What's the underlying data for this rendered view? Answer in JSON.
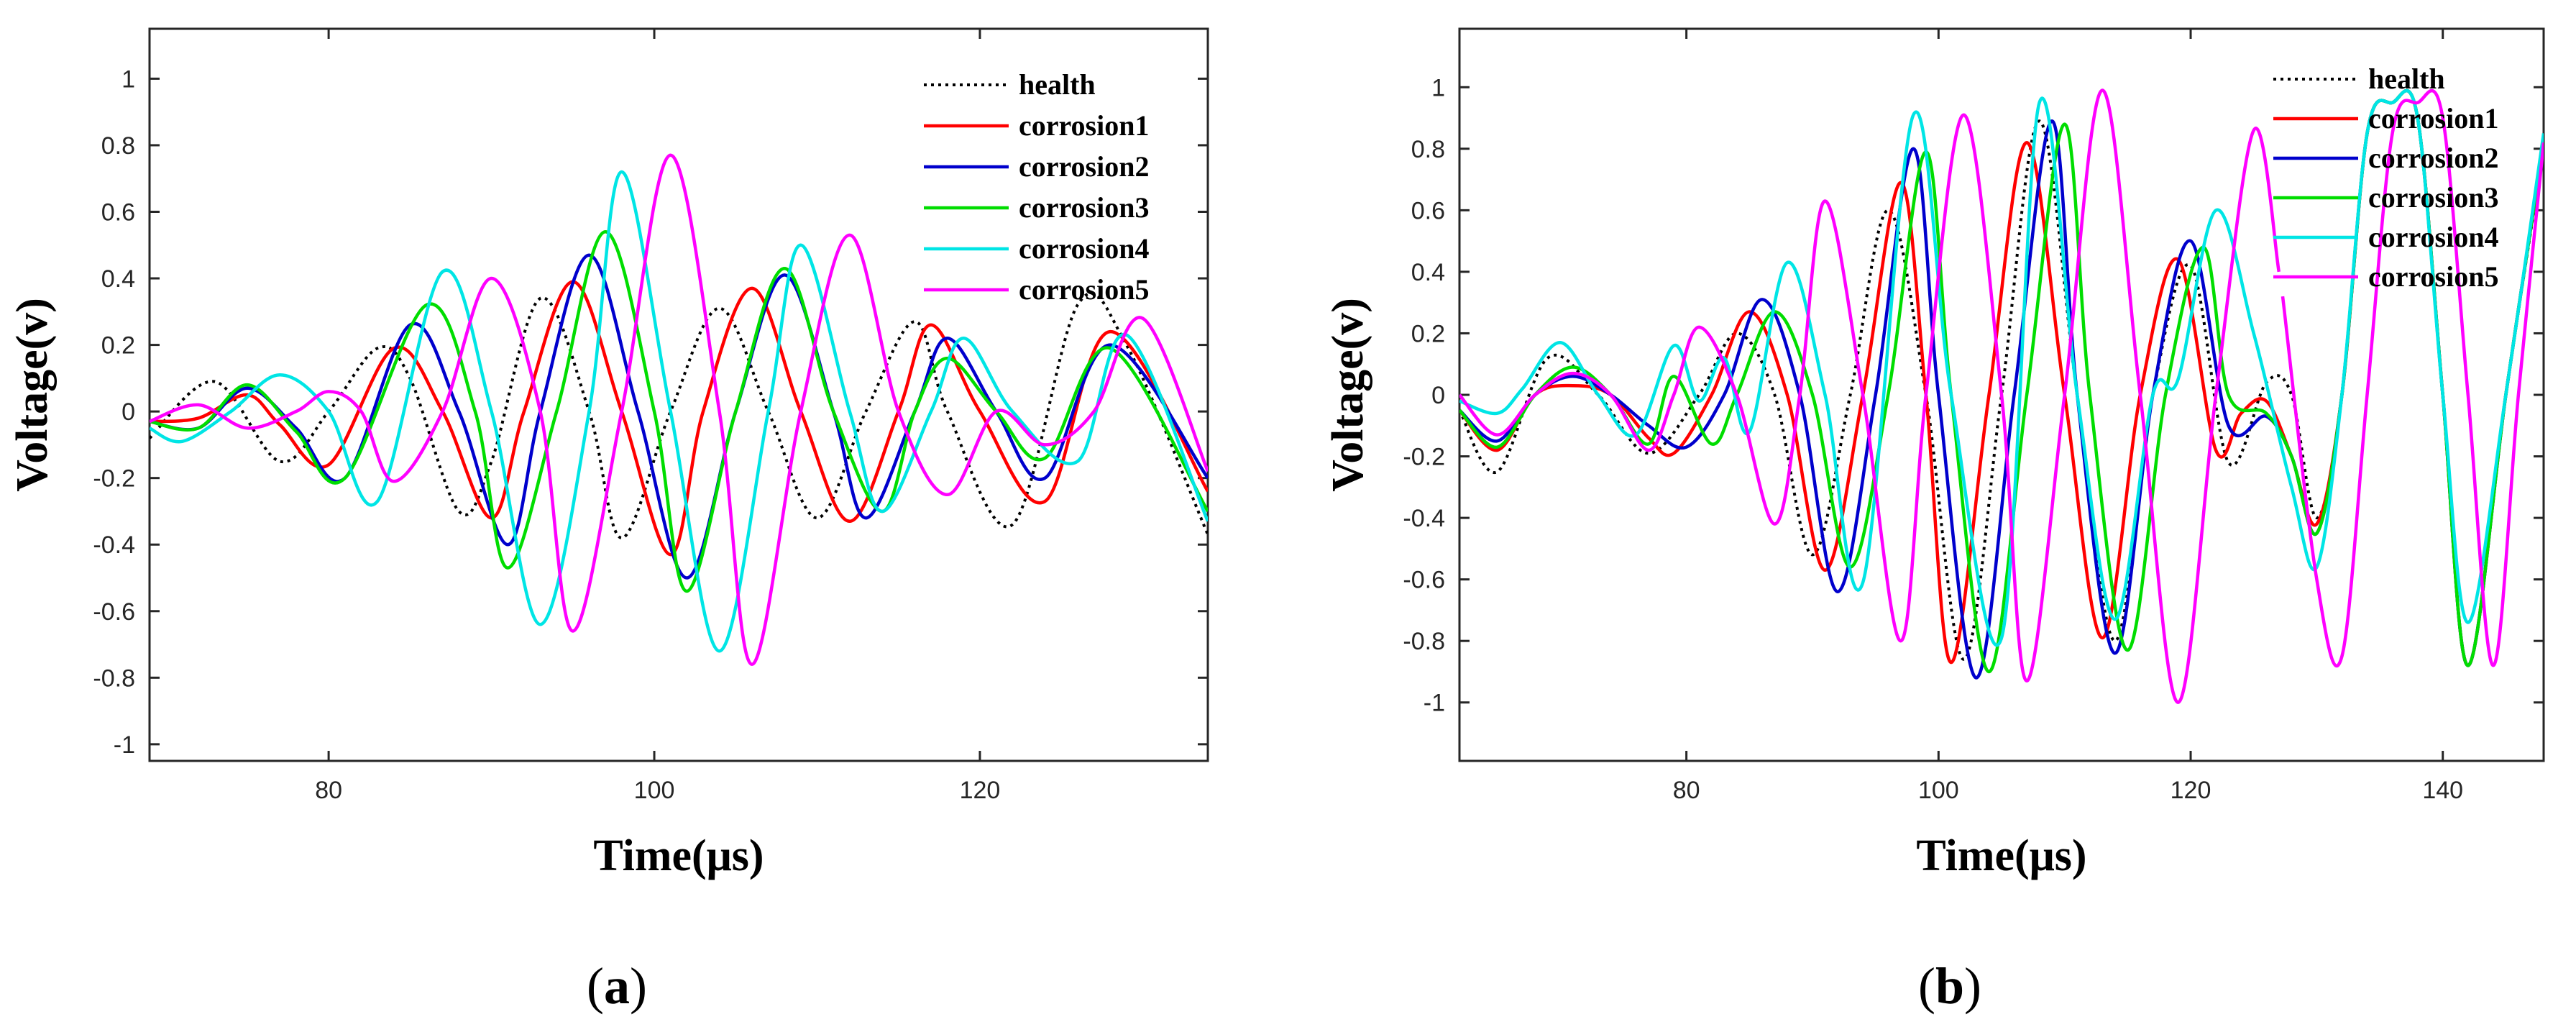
{
  "figure": {
    "colors": {
      "health": "#000000",
      "corrosion1": "#ff0000",
      "corrosion2": "#0000cc",
      "corrosion3": "#00dd00",
      "corrosion4": "#00e5e5",
      "corrosion5": "#ff00ff"
    }
  },
  "chart_data": [
    {
      "type": "line",
      "panel_label": "a",
      "xlabel": "Time(μs)",
      "ylabel": "Voltage(v)",
      "xlim": [
        69,
        134
      ],
      "ylim": [
        -1.05,
        1.15
      ],
      "xticks": [
        80,
        100,
        120
      ],
      "yticks": [
        -1,
        -0.8,
        -0.6,
        -0.4,
        -0.2,
        0,
        0.2,
        0.4,
        0.6,
        0.8,
        1
      ],
      "legend_position": "top-right",
      "series": [
        {
          "name": "health",
          "key": "health",
          "style": "dotted",
          "x": [
            69,
            73,
            77,
            80,
            83,
            85,
            88,
            90,
            93,
            96,
            98,
            101,
            104,
            107,
            110,
            113,
            116,
            118,
            122,
            126,
            129,
            134
          ],
          "y": [
            -0.08,
            0.09,
            -0.15,
            0,
            0.19,
            0.1,
            -0.3,
            -0.15,
            0.34,
            0,
            -0.38,
            0,
            0.31,
            0,
            -0.32,
            0,
            0.27,
            0,
            -0.34,
            0.32,
            0.2,
            -0.37
          ]
        },
        {
          "name": "corrosion1",
          "key": "corrosion1",
          "style": "solid",
          "x": [
            69,
            72,
            75,
            77,
            80,
            84,
            87,
            90,
            92,
            95,
            98,
            101,
            103,
            106,
            109,
            112,
            115,
            117,
            120,
            124,
            128,
            134
          ],
          "y": [
            -0.03,
            -0.02,
            0.05,
            -0.04,
            -0.16,
            0.19,
            0,
            -0.32,
            0,
            0.39,
            0,
            -0.43,
            0,
            0.37,
            0,
            -0.33,
            0,
            0.26,
            0,
            -0.27,
            0.24,
            -0.24
          ]
        },
        {
          "name": "corrosion2",
          "key": "corrosion2",
          "style": "solid",
          "x": [
            69,
            72,
            75,
            78,
            81,
            85,
            88,
            91,
            93,
            96,
            99,
            102,
            105,
            108,
            111,
            113,
            116,
            118,
            121,
            124,
            128,
            134
          ],
          "y": [
            -0.03,
            -0.05,
            0.07,
            -0.05,
            -0.2,
            0.26,
            0,
            -0.4,
            0,
            0.47,
            0,
            -0.5,
            0,
            0.41,
            0,
            -0.32,
            0,
            0.22,
            0,
            -0.2,
            0.2,
            -0.2
          ]
        },
        {
          "name": "corrosion3",
          "key": "corrosion3",
          "style": "solid",
          "x": [
            69,
            72,
            75,
            78,
            81,
            86,
            89,
            91,
            94,
            97,
            100,
            102,
            105,
            108,
            111,
            114,
            116,
            118,
            121,
            124,
            128,
            134
          ],
          "y": [
            -0.03,
            -0.05,
            0.08,
            -0.06,
            -0.2,
            0.32,
            0,
            -0.47,
            0,
            0.54,
            0,
            -0.54,
            0,
            0.43,
            0,
            -0.3,
            0,
            0.16,
            0,
            -0.14,
            0.19,
            -0.3
          ]
        },
        {
          "name": "corrosion4",
          "key": "corrosion4",
          "style": "solid",
          "x": [
            69,
            71,
            74,
            77,
            80,
            83,
            87,
            90,
            93,
            96,
            98,
            101,
            104,
            107,
            109,
            112,
            114,
            117,
            119,
            122,
            126,
            129,
            134
          ],
          "y": [
            -0.05,
            -0.09,
            0,
            0.11,
            0,
            -0.27,
            0.42,
            0,
            -0.64,
            0,
            0.72,
            0,
            -0.72,
            0,
            0.5,
            0,
            -0.3,
            0,
            0.22,
            0,
            -0.15,
            0.23,
            -0.33
          ]
        },
        {
          "name": "corrosion5",
          "key": "corrosion5",
          "style": "solid",
          "x": [
            69,
            72,
            75,
            78,
            80,
            82,
            84,
            87,
            90,
            93,
            95,
            98,
            101,
            104,
            106,
            109,
            112,
            115,
            118,
            121,
            124,
            127,
            130,
            134
          ],
          "y": [
            -0.03,
            0.02,
            -0.05,
            0,
            0.06,
            0,
            -0.21,
            0,
            0.4,
            0,
            -0.66,
            0,
            0.77,
            0,
            -0.76,
            0,
            0.53,
            0,
            -0.25,
            0,
            -0.1,
            0,
            0.28,
            -0.18
          ]
        }
      ]
    },
    {
      "type": "line",
      "panel_label": "b",
      "xlabel": "Time(μs)",
      "ylabel": "Voltage(v)",
      "xlim": [
        62,
        148
      ],
      "ylim": [
        -1.19,
        1.19
      ],
      "xticks": [
        80,
        100,
        120,
        140
      ],
      "yticks": [
        -1,
        -0.8,
        -0.6,
        -0.4,
        -0.2,
        0,
        0.2,
        0.4,
        0.6,
        0.8,
        1
      ],
      "legend_position": "top-right",
      "series": [
        {
          "name": "health",
          "key": "health",
          "style": "dotted",
          "x": [
            62,
            65,
            69,
            73,
            77,
            81,
            84,
            87,
            90,
            93,
            96,
            99,
            102,
            105,
            108,
            111,
            114,
            117,
            120,
            123,
            126,
            128,
            130,
            132,
            134,
            136,
            138,
            140,
            142,
            145,
            148
          ],
          "y": [
            -0.05,
            -0.25,
            0.12,
            0,
            -0.19,
            0,
            0.2,
            0,
            -0.52,
            0,
            0.6,
            0,
            -0.86,
            0,
            0.89,
            0,
            -0.8,
            0,
            0.42,
            -0.22,
            0.04,
            0,
            -0.4,
            0,
            0.85,
            0.95,
            0.9,
            0,
            -0.88,
            0,
            0.8
          ]
        },
        {
          "name": "corrosion1",
          "key": "corrosion1",
          "style": "solid",
          "x": [
            62,
            65,
            68,
            71,
            74,
            77,
            79,
            82,
            85,
            88,
            91,
            94,
            97,
            99,
            101,
            104,
            107,
            110,
            113,
            116,
            119,
            122,
            124,
            126,
            128,
            130,
            132,
            134,
            136,
            138,
            140,
            142,
            145,
            148
          ],
          "y": [
            -0.05,
            -0.18,
            0,
            0.03,
            0,
            -0.14,
            -0.19,
            0,
            0.27,
            0,
            -0.57,
            0,
            0.69,
            0,
            -0.87,
            0,
            0.82,
            0,
            -0.79,
            0,
            0.44,
            -0.18,
            -0.06,
            -0.02,
            -0.2,
            -0.42,
            0,
            0.85,
            0.95,
            0.9,
            0,
            -0.88,
            0,
            0.82
          ]
        },
        {
          "name": "corrosion2",
          "key": "corrosion2",
          "style": "solid",
          "x": [
            62,
            65,
            68,
            71,
            74,
            77,
            80,
            83,
            86,
            89,
            92,
            95,
            98,
            100,
            103,
            106,
            109,
            111,
            114,
            117,
            120,
            123,
            126,
            128,
            130,
            132,
            134,
            136,
            138,
            140,
            142,
            145,
            148
          ],
          "y": [
            -0.05,
            -0.15,
            0,
            0.06,
            0,
            -0.1,
            -0.17,
            0,
            0.31,
            0,
            -0.64,
            0,
            0.8,
            0,
            -0.92,
            0,
            0.89,
            0,
            -0.84,
            0,
            0.5,
            -0.1,
            -0.07,
            -0.2,
            -0.45,
            0,
            0.85,
            0.95,
            0.9,
            0,
            -0.88,
            0,
            0.82
          ]
        },
        {
          "name": "corrosion3",
          "key": "corrosion3",
          "style": "solid",
          "x": [
            62,
            65,
            68,
            71,
            74,
            77,
            79,
            82,
            84,
            87,
            90,
            93,
            96,
            99,
            101,
            104,
            107,
            110,
            112,
            115,
            118,
            121,
            123,
            126,
            128,
            130,
            132,
            134,
            136,
            138,
            140,
            142,
            145,
            148
          ],
          "y": [
            -0.05,
            -0.17,
            0,
            0.09,
            0,
            -0.16,
            0.06,
            -0.16,
            0,
            0.27,
            0,
            -0.56,
            0,
            0.79,
            0,
            -0.9,
            0,
            0.88,
            0,
            -0.83,
            0,
            0.48,
            0,
            -0.06,
            -0.2,
            -0.45,
            0,
            0.85,
            0.95,
            0.9,
            0,
            -0.88,
            0,
            0.82
          ]
        },
        {
          "name": "corrosion4",
          "key": "corrosion4",
          "style": "solid",
          "x": [
            62,
            65,
            67,
            70,
            73,
            76,
            79,
            81,
            83,
            85,
            88,
            91,
            94,
            98,
            101,
            105,
            108,
            111,
            114,
            117,
            119,
            122,
            125,
            128,
            130,
            132,
            134,
            136,
            138,
            140,
            142,
            145,
            148
          ],
          "y": [
            -0.02,
            -0.06,
            0.02,
            0.17,
            0,
            -0.13,
            0.16,
            -0.02,
            0.12,
            -0.12,
            0.43,
            0,
            -0.61,
            0.91,
            0,
            -0.79,
            0.95,
            0,
            -0.73,
            0,
            0.05,
            0.6,
            0.2,
            -0.3,
            -0.56,
            0,
            0.85,
            0.95,
            0.9,
            0,
            -0.74,
            0,
            0.85
          ]
        },
        {
          "name": "corrosion5",
          "key": "corrosion5",
          "style": "solid",
          "x": [
            62,
            65,
            68,
            71,
            74,
            77,
            79,
            81,
            84,
            87,
            89,
            91,
            94,
            97,
            99,
            102,
            105,
            107,
            110,
            113,
            116,
            119,
            122,
            125,
            127
          ],
          "y": [
            0,
            -0.13,
            0,
            0.07,
            0,
            -0.18,
            0,
            0.22,
            0,
            -0.42,
            0,
            0.63,
            0,
            -0.8,
            0,
            0.91,
            0,
            -0.93,
            0,
            0.99,
            0,
            -1.0,
            0,
            0.86,
            0.4
          ]
        }
      ],
      "extra_segment": {
        "key": "corrosion5",
        "x": [
          127.3,
          130,
          132,
          134,
          136,
          138,
          140,
          142,
          144,
          146,
          148
        ],
        "y": [
          0.32,
          -0.6,
          -0.85,
          0,
          0.85,
          0.95,
          0.9,
          0,
          -0.88,
          0,
          0.82
        ]
      }
    }
  ],
  "legend": [
    {
      "key": "health",
      "label": "health"
    },
    {
      "key": "corrosion1",
      "label": "corrosion1"
    },
    {
      "key": "corrosion2",
      "label": "corrosion2"
    },
    {
      "key": "corrosion3",
      "label": "corrosion3"
    },
    {
      "key": "corrosion4",
      "label": "corrosion4"
    },
    {
      "key": "corrosion5",
      "label": "corrosion5"
    }
  ]
}
